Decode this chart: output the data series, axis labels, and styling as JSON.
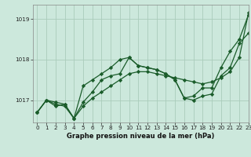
{
  "title": "Graphe pression niveau de la mer (hPa)",
  "bg_color": "#cce8dc",
  "plot_bg_color": "#cce8dc",
  "grid_color": "#aaccbb",
  "line_color": "#1a5c2a",
  "xlim": [
    -0.5,
    23
  ],
  "ylim": [
    1016.45,
    1019.35
  ],
  "yticks": [
    1017,
    1018,
    1019
  ],
  "xticks": [
    0,
    1,
    2,
    3,
    4,
    5,
    6,
    7,
    8,
    9,
    10,
    11,
    12,
    13,
    14,
    15,
    16,
    17,
    18,
    19,
    20,
    21,
    22,
    23
  ],
  "series": [
    [
      1016.7,
      1017.0,
      1016.95,
      1016.9,
      1016.55,
      1016.85,
      1017.05,
      1017.2,
      1017.35,
      1017.5,
      1017.65,
      1017.7,
      1017.7,
      1017.65,
      1017.6,
      1017.55,
      1017.5,
      1017.45,
      1017.4,
      1017.45,
      1017.55,
      1017.7,
      1018.05,
      1019.15
    ],
    [
      1016.7,
      1017.0,
      1016.9,
      1016.85,
      1016.55,
      1017.35,
      1017.5,
      1017.65,
      1017.8,
      1018.0,
      1018.05,
      1017.85,
      1017.8,
      1017.75,
      1017.65,
      1017.5,
      1017.05,
      1017.0,
      1017.1,
      1017.15,
      1017.6,
      1017.8,
      1018.4,
      1018.65
    ],
    [
      1016.7,
      1017.0,
      1016.85,
      1016.9,
      1016.55,
      1016.95,
      1017.2,
      1017.5,
      1017.6,
      1017.65,
      1018.05,
      1017.85,
      1017.8,
      1017.75,
      1017.65,
      1017.5,
      1017.05,
      1017.1,
      1017.3,
      1017.3,
      1017.8,
      1018.2,
      1018.5,
      1019.1
    ]
  ],
  "marker": "D",
  "marker_size": 2.2,
  "line_width": 0.9,
  "xlabel_fontsize": 6.0,
  "tick_fontsize": 5.2
}
